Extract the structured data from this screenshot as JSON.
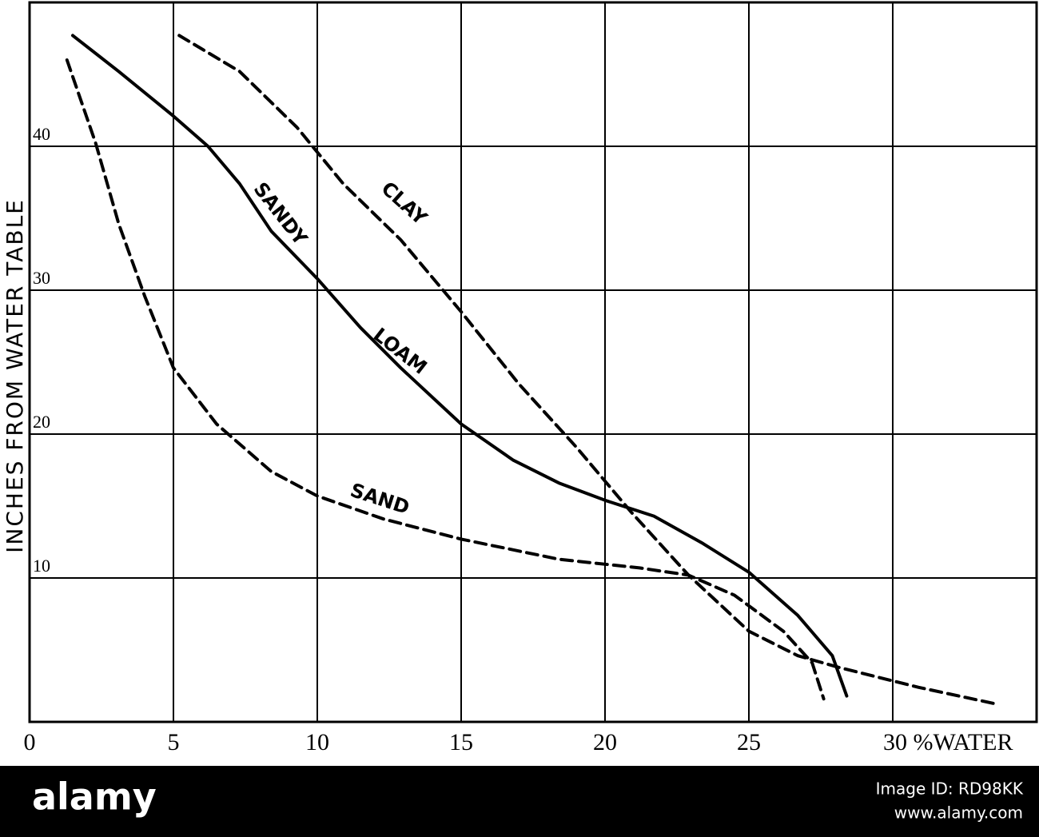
{
  "chart_data": {
    "type": "line",
    "y_label": "INCHES FROM WATER TABLE",
    "xlim": [
      0,
      35
    ],
    "ylim": [
      0,
      50
    ],
    "xticks": [
      0,
      5,
      10,
      15,
      20,
      25,
      {
        "value": 30,
        "label": "30 %WATER"
      }
    ],
    "yticks": [
      10,
      20,
      30,
      40
    ],
    "grid": true,
    "series": [
      {
        "label_words": [
          "SANDY",
          "LOAM"
        ],
        "color": "#000000",
        "dash": false,
        "x": [
          1.5,
          3.1,
          5,
          6.2,
          7.3,
          8.4,
          10,
          11.5,
          12.9,
          15,
          16.8,
          18.4,
          20,
          21.7,
          23.4,
          25,
          26.7,
          27.9,
          28.4
        ],
        "values": [
          47.7,
          45.2,
          42.1,
          40,
          37.4,
          34.1,
          30.8,
          27.4,
          24.6,
          20.7,
          18.2,
          16.6,
          15.4,
          14.3,
          12.4,
          10.4,
          7.4,
          4.6,
          1.8
        ]
      },
      {
        "name": "CLAY",
        "color": "#000000",
        "dash": true,
        "x": [
          5.2,
          7.3,
          9.3,
          10.9,
          12.9,
          15,
          17,
          19,
          20.9,
          22.9,
          25,
          26.7,
          28.1,
          30.9,
          33.7
        ],
        "values": [
          47.7,
          45.2,
          41.3,
          37.4,
          33.5,
          28.5,
          23.5,
          19.1,
          14.6,
          10.2,
          6.3,
          4.6,
          3.8,
          2.4,
          1.2
        ]
      },
      {
        "name": "SAND",
        "color": "#000000",
        "dash": true,
        "x": [
          1.3,
          2.3,
          3.1,
          4,
          5,
          6.5,
          8.4,
          10,
          12.3,
          15,
          18.4,
          21.2,
          22.9,
          24.5,
          26.2,
          27.2,
          27.6
        ],
        "values": [
          46,
          40.2,
          34.6,
          29.6,
          24.6,
          20.7,
          17.4,
          15.7,
          14.1,
          12.7,
          11.3,
          10.7,
          10.2,
          8.8,
          6.3,
          4.1,
          1.6
        ]
      }
    ]
  },
  "watermark": {
    "brand": "alamy",
    "image_id": "Image ID: RD98KK",
    "url": "www.alamy.com"
  }
}
